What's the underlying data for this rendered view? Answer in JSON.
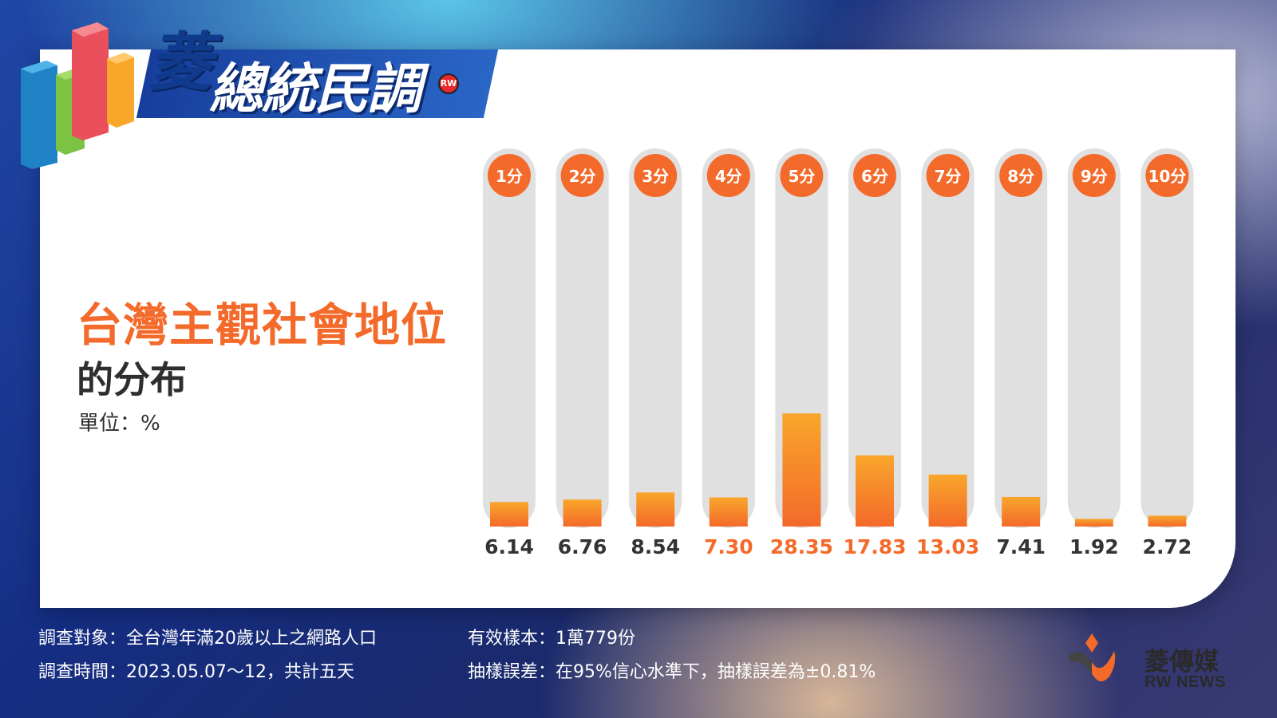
{
  "header": {
    "logo_char": "菱",
    "logo_rest": "總統民調",
    "logo_sticker": "RW"
  },
  "chart_data": {
    "type": "bar",
    "title": "台灣主觀社會地位",
    "subtitle": "的分布",
    "unit_label": "單位：%",
    "categories": [
      "1分",
      "2分",
      "3分",
      "4分",
      "5分",
      "6分",
      "7分",
      "8分",
      "9分",
      "10分"
    ],
    "value_labels": [
      "6.14",
      "6.76",
      "8.54",
      "7.30",
      "28.35",
      "17.83",
      "13.03",
      "7.41",
      "1.92",
      "2.72"
    ],
    "values": [
      6.14,
      6.76,
      8.54,
      7.3,
      28.35,
      17.83,
      13.03,
      7.41,
      1.92,
      2.72
    ],
    "highlighted": [
      false,
      false,
      false,
      true,
      true,
      true,
      true,
      false,
      false,
      false
    ],
    "ylim": [
      0,
      100
    ],
    "colors": {
      "bar_top": "#f9a62b",
      "bar_bottom": "#f36a2a",
      "track": "#e0e0e0",
      "badge": "#f36a2a",
      "label_default": "#333333",
      "label_highlight": "#f36a2a"
    }
  },
  "footer": {
    "survey_target": "調查對象：全台灣年滿20歲以上之網路人口",
    "survey_time": "調查時間：2023.05.07～12，共計五天",
    "valid_sample": "有效樣本：1萬779份",
    "sampling_error": "抽樣誤差：在95%信心水準下，抽樣誤差為±0.81%"
  },
  "brand": {
    "name_cn": "菱傳媒",
    "name_en": "RW NEWS"
  }
}
